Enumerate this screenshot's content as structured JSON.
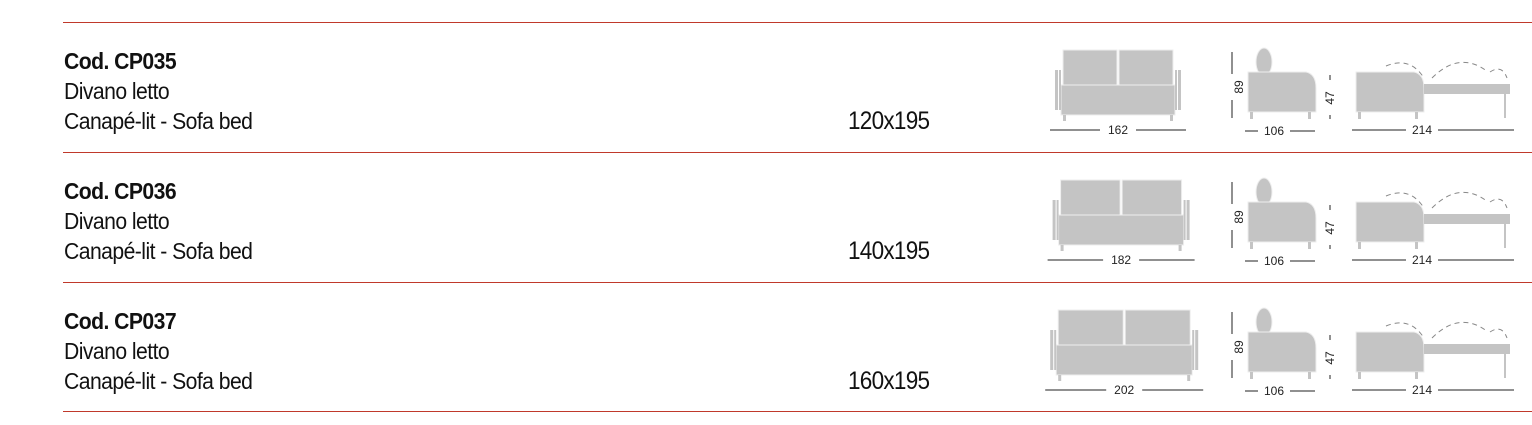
{
  "accent_color": "#c0392b",
  "products": [
    {
      "code": "Cod. CP035",
      "name_it": "Divano letto",
      "name_fr_en": "Canapé-lit - Sofa bed",
      "size": "120x195",
      "dims": {
        "width": "162",
        "height": "89",
        "depth": "106",
        "seat": "47",
        "open": "214"
      }
    },
    {
      "code": "Cod. CP036",
      "name_it": "Divano letto",
      "name_fr_en": "Canapé-lit - Sofa bed",
      "size": "140x195",
      "dims": {
        "width": "182",
        "height": "89",
        "depth": "106",
        "seat": "47",
        "open": "214"
      }
    },
    {
      "code": "Cod. CP037",
      "name_it": "Divano letto",
      "name_fr_en": "Canapé-lit - Sofa bed",
      "size": "160x195",
      "dims": {
        "width": "202",
        "height": "89",
        "depth": "106",
        "seat": "47",
        "open": "214"
      }
    }
  ]
}
